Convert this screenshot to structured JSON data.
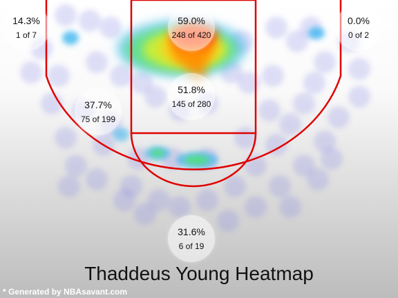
{
  "chart_data": {
    "type": "heatmap",
    "title": "Thaddeus Young Heatmap",
    "credit": "* Generated by NBAsavant.com",
    "colors": {
      "court_line": "#e00000",
      "background_top": "#ffffff",
      "background_bottom": "#bdbdbd",
      "heat_scale": [
        "#6f6ff0",
        "#3fb6f0",
        "#4fe07a",
        "#d8f02a",
        "#ffd21a",
        "#ff8a00",
        "#ff2400"
      ]
    },
    "zones": [
      {
        "id": "left-corner-three",
        "pct": "14.3%",
        "made_of_attempts": "1 of 7"
      },
      {
        "id": "restricted-area",
        "pct": "59.0%",
        "made_of_attempts": "248 of 420"
      },
      {
        "id": "right-corner-three",
        "pct": "0.0%",
        "made_of_attempts": "0 of 2"
      },
      {
        "id": "left-wing-midrange",
        "pct": "37.7%",
        "made_of_attempts": "75 of 199"
      },
      {
        "id": "paint-non-ra",
        "pct": "51.8%",
        "made_of_attempts": "145 of 280"
      },
      {
        "id": "above-break-three",
        "pct": "31.6%",
        "made_of_attempts": "6 of 19"
      }
    ]
  }
}
